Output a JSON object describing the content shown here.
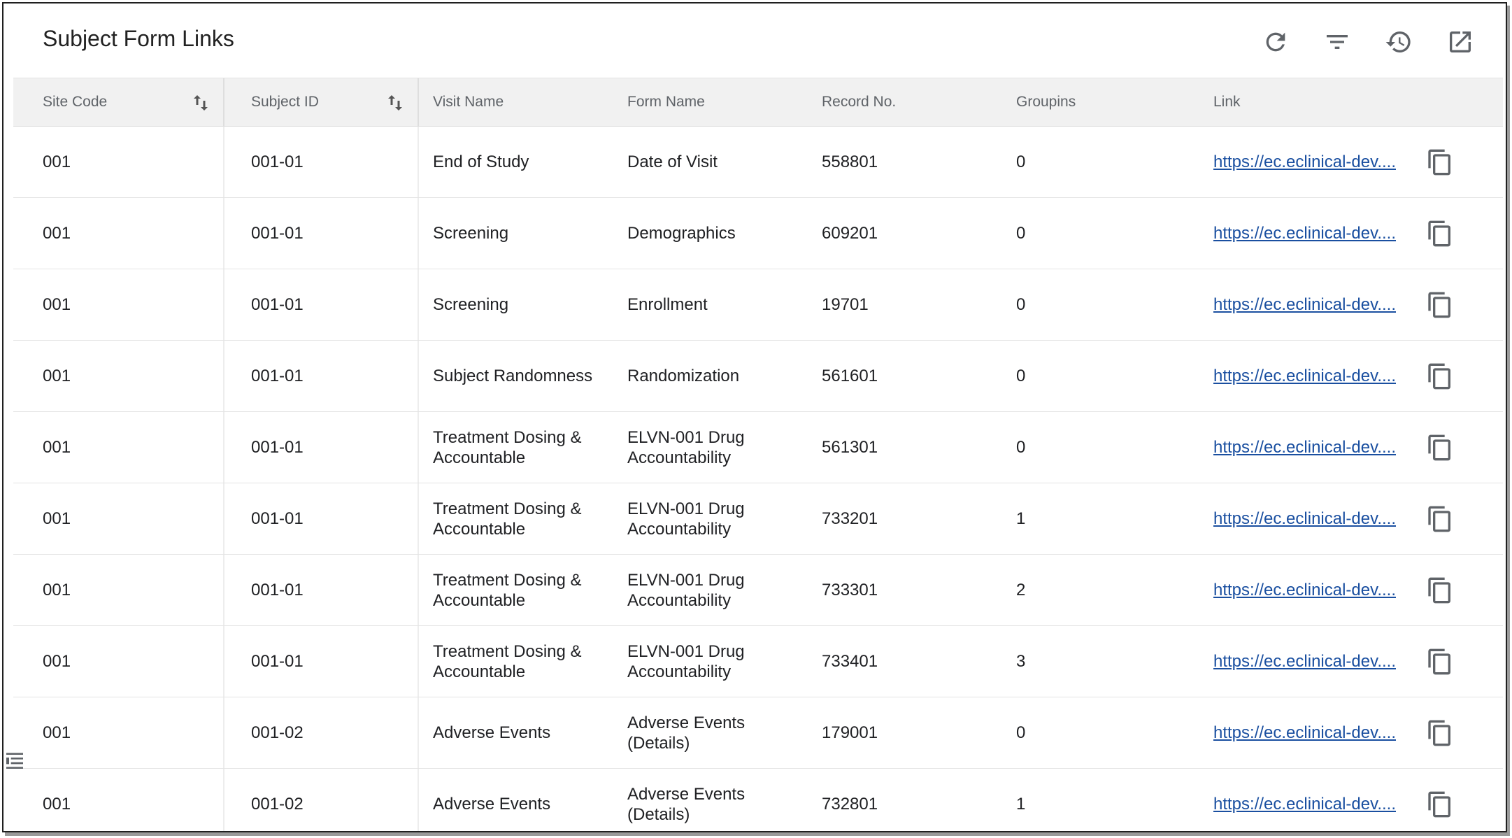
{
  "page": {
    "title": "Subject Form Links"
  },
  "toolbar": {
    "icons": [
      "refresh-icon",
      "filter-icon",
      "history-icon",
      "open-external-icon"
    ]
  },
  "columns": {
    "site_code": "Site Code",
    "subject_id": "Subject ID",
    "visit_name": "Visit Name",
    "form_name": "Form Name",
    "record_no": "Record No.",
    "groupins": "Groupins",
    "link": "Link"
  },
  "rows": [
    {
      "site": "001",
      "subject": "001-01",
      "visit": "End of Study",
      "form": "Date of Visit",
      "record": "558801",
      "group": "0",
      "link": "https://ec.eclinical-dev...."
    },
    {
      "site": "001",
      "subject": "001-01",
      "visit": "Screening",
      "form": "Demographics",
      "record": "609201",
      "group": "0",
      "link": "https://ec.eclinical-dev...."
    },
    {
      "site": "001",
      "subject": "001-01",
      "visit": "Screening",
      "form": "Enrollment",
      "record": "19701",
      "group": "0",
      "link": "https://ec.eclinical-dev...."
    },
    {
      "site": "001",
      "subject": "001-01",
      "visit": "Subject Randomness",
      "form": "Randomization",
      "record": "561601",
      "group": "0",
      "link": "https://ec.eclinical-dev...."
    },
    {
      "site": "001",
      "subject": "001-01",
      "visit": "Treatment Dosing & Accountable",
      "form": "ELVN-001 Drug Accountability",
      "record": "561301",
      "group": "0",
      "link": "https://ec.eclinical-dev...."
    },
    {
      "site": "001",
      "subject": "001-01",
      "visit": "Treatment Dosing & Accountable",
      "form": "ELVN-001 Drug Accountability",
      "record": "733201",
      "group": "1",
      "link": "https://ec.eclinical-dev...."
    },
    {
      "site": "001",
      "subject": "001-01",
      "visit": "Treatment Dosing & Accountable",
      "form": "ELVN-001 Drug Accountability",
      "record": "733301",
      "group": "2",
      "link": "https://ec.eclinical-dev...."
    },
    {
      "site": "001",
      "subject": "001-01",
      "visit": "Treatment Dosing & Accountable",
      "form": "ELVN-001 Drug Accountability",
      "record": "733401",
      "group": "3",
      "link": "https://ec.eclinical-dev...."
    },
    {
      "site": "001",
      "subject": "001-02",
      "visit": "Adverse Events",
      "form": "Adverse Events (Details)",
      "record": "179001",
      "group": "0",
      "link": "https://ec.eclinical-dev...."
    },
    {
      "site": "001",
      "subject": "001-02",
      "visit": "Adverse Events",
      "form": "Adverse Events (Details)",
      "record": "732801",
      "group": "1",
      "link": "https://ec.eclinical-dev...."
    }
  ],
  "colors": {
    "link": "#1a4fa0",
    "header_bg": "#f1f1f1",
    "icon": "#5f6368"
  }
}
